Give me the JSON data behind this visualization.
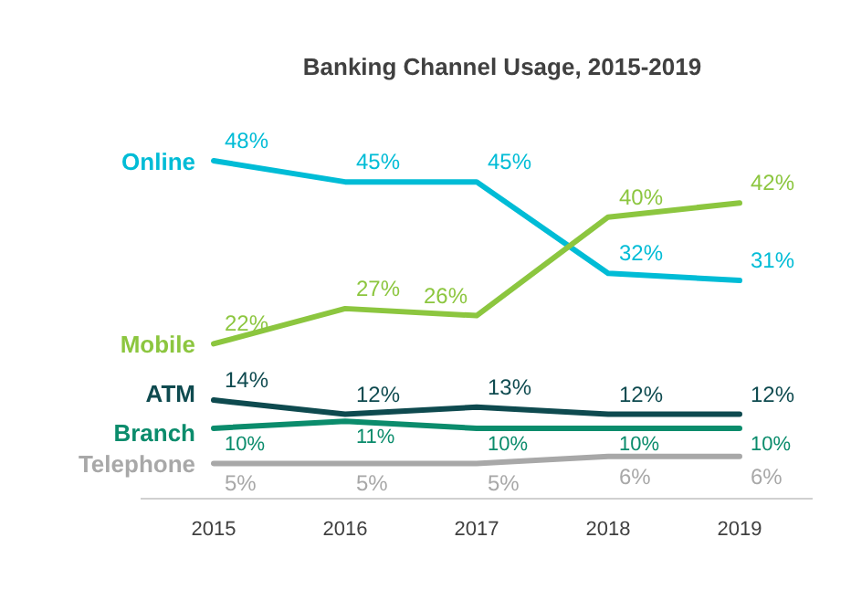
{
  "chart_data": {
    "type": "line",
    "title": "Banking Channel Usage, 2015-2019",
    "categories": [
      "2015",
      "2016",
      "2017",
      "2018",
      "2019"
    ],
    "data_labels": false,
    "series": [
      {
        "name": "Online",
        "color": "#00bcd6",
        "values": [
          48,
          45,
          45,
          32,
          31
        ],
        "value_labels": [
          "48%",
          "45%",
          "45%",
          "32%",
          "31%"
        ]
      },
      {
        "name": "Mobile",
        "color": "#8cc63f",
        "values": [
          22,
          27,
          26,
          40,
          42
        ],
        "value_labels": [
          "22%",
          "27%",
          "26%",
          "40%",
          "42%"
        ]
      },
      {
        "name": "ATM",
        "color": "#0e4a4f",
        "values": [
          14,
          12,
          13,
          12,
          12
        ],
        "value_labels": [
          "14%",
          "12%",
          "13%",
          "12%",
          "12%"
        ]
      },
      {
        "name": "Branch",
        "color": "#0b8c6c",
        "values": [
          10,
          11,
          10,
          10,
          10
        ],
        "value_labels": [
          "10%",
          "11%",
          "10%",
          "10%",
          "10%"
        ]
      },
      {
        "name": "Telephone",
        "color": "#a8a8a8",
        "values": [
          5,
          5,
          5,
          6,
          6
        ],
        "value_labels": [
          "5%",
          "5%",
          "5%",
          "6%",
          "6%"
        ]
      }
    ]
  }
}
